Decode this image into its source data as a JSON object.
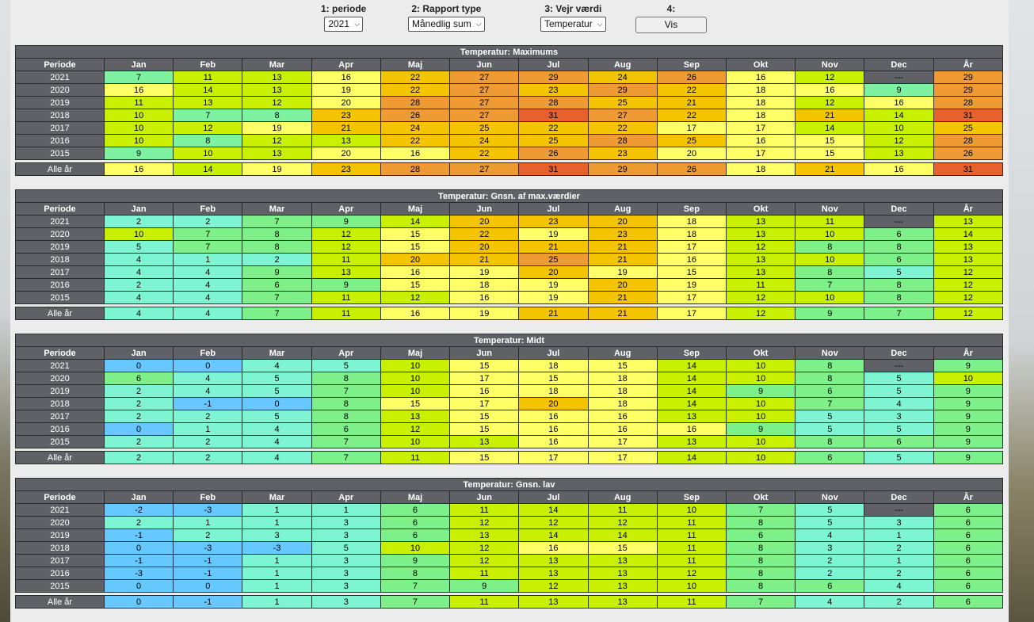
{
  "controls": {
    "periode_label": "1: periode",
    "periode_value": "2021",
    "rapport_label": "2: Rapport type",
    "rapport_value": "Månedlig sum",
    "vejr_label": "3: Vejr værdi",
    "vejr_value": "Temperatur",
    "step4_label": "4:",
    "vis_label": "Vis"
  },
  "months": [
    "Jan",
    "Feb",
    "Mar",
    "Apr",
    "Maj",
    "Jun",
    "Jul",
    "Aug",
    "Sep",
    "Okt",
    "Nov",
    "Dec",
    "År"
  ],
  "periode_header": "Periode",
  "colors": {
    "header": "#5f6166",
    "empty": "#5f6166",
    "scale": {
      "-3": "#66c8ff",
      "-1": "#66ccff",
      "0": "#6ecbf5",
      "1": "#78f5d2",
      "5": "#7df2c0",
      "7": "#7ef08a",
      "9": "#80f090",
      "10": "#c8f000",
      "15": "#ffff66",
      "20": "#f5c400",
      "26": "#ee9b34",
      "31": "#e8602c"
    }
  },
  "tables": [
    {
      "title": "Temperatur: Maximums",
      "rows": [
        {
          "label": "2021",
          "values": [
            "7",
            "11",
            "13",
            "16",
            "22",
            "27",
            "29",
            "24",
            "26",
            "16",
            "12",
            "---",
            "29"
          ]
        },
        {
          "label": "2020",
          "values": [
            "16",
            "14",
            "13",
            "19",
            "22",
            "27",
            "23",
            "29",
            "22",
            "18",
            "16",
            "9",
            "29"
          ]
        },
        {
          "label": "2019",
          "values": [
            "11",
            "13",
            "12",
            "20",
            "28",
            "27",
            "28",
            "25",
            "21",
            "18",
            "12",
            "16",
            "28"
          ]
        },
        {
          "label": "2018",
          "values": [
            "10",
            "7",
            "8",
            "23",
            "26",
            "27",
            "31",
            "27",
            "22",
            "18",
            "21",
            "14",
            "31"
          ]
        },
        {
          "label": "2017",
          "values": [
            "10",
            "12",
            "19",
            "21",
            "24",
            "25",
            "22",
            "22",
            "17",
            "17",
            "14",
            "10",
            "25"
          ]
        },
        {
          "label": "2016",
          "values": [
            "10",
            "8",
            "12",
            "13",
            "22",
            "24",
            "25",
            "28",
            "25",
            "16",
            "15",
            "12",
            "28"
          ]
        },
        {
          "label": "2015",
          "values": [
            "9",
            "10",
            "13",
            "20",
            "16",
            "22",
            "26",
            "23",
            "20",
            "17",
            "15",
            "13",
            "26"
          ]
        }
      ],
      "all": {
        "label": "Alle år",
        "values": [
          "16",
          "14",
          "19",
          "23",
          "28",
          "27",
          "31",
          "29",
          "26",
          "18",
          "21",
          "16",
          "31"
        ]
      }
    },
    {
      "title": "Temperatur: Gnsn. af max.værdier",
      "rows": [
        {
          "label": "2021",
          "values": [
            "2",
            "2",
            "7",
            "9",
            "14",
            "20",
            "23",
            "20",
            "18",
            "13",
            "11",
            "---",
            "13"
          ]
        },
        {
          "label": "2020",
          "values": [
            "10",
            "7",
            "8",
            "12",
            "15",
            "22",
            "19",
            "23",
            "18",
            "13",
            "10",
            "6",
            "14"
          ]
        },
        {
          "label": "2019",
          "values": [
            "5",
            "7",
            "8",
            "12",
            "15",
            "20",
            "21",
            "21",
            "17",
            "12",
            "8",
            "8",
            "13"
          ]
        },
        {
          "label": "2018",
          "values": [
            "4",
            "1",
            "2",
            "11",
            "20",
            "21",
            "25",
            "21",
            "16",
            "13",
            "10",
            "6",
            "13"
          ]
        },
        {
          "label": "2017",
          "values": [
            "4",
            "4",
            "9",
            "13",
            "16",
            "19",
            "20",
            "19",
            "15",
            "13",
            "8",
            "5",
            "12"
          ]
        },
        {
          "label": "2016",
          "values": [
            "2",
            "4",
            "6",
            "9",
            "15",
            "18",
            "19",
            "20",
            "19",
            "11",
            "7",
            "8",
            "12"
          ]
        },
        {
          "label": "2015",
          "values": [
            "4",
            "4",
            "7",
            "11",
            "12",
            "16",
            "19",
            "21",
            "17",
            "12",
            "10",
            "8",
            "12"
          ]
        }
      ],
      "all": {
        "label": "Alle år",
        "values": [
          "4",
          "4",
          "7",
          "11",
          "16",
          "19",
          "21",
          "21",
          "17",
          "12",
          "9",
          "7",
          "12"
        ]
      }
    },
    {
      "title": "Temperatur: Midt",
      "rows": [
        {
          "label": "2021",
          "values": [
            "0",
            "0",
            "4",
            "5",
            "10",
            "15",
            "18",
            "15",
            "14",
            "10",
            "8",
            "---",
            "9"
          ]
        },
        {
          "label": "2020",
          "values": [
            "6",
            "4",
            "5",
            "8",
            "10",
            "17",
            "15",
            "18",
            "14",
            "10",
            "8",
            "5",
            "10"
          ]
        },
        {
          "label": "2019",
          "values": [
            "2",
            "4",
            "5",
            "7",
            "10",
            "16",
            "18",
            "18",
            "14",
            "9",
            "6",
            "5",
            "9"
          ]
        },
        {
          "label": "2018",
          "values": [
            "2",
            "-1",
            "0",
            "8",
            "15",
            "17",
            "20",
            "18",
            "14",
            "10",
            "7",
            "4",
            "9"
          ]
        },
        {
          "label": "2017",
          "values": [
            "2",
            "2",
            "5",
            "8",
            "13",
            "15",
            "16",
            "16",
            "13",
            "10",
            "5",
            "3",
            "9"
          ]
        },
        {
          "label": "2016",
          "values": [
            "0",
            "1",
            "4",
            "6",
            "12",
            "15",
            "16",
            "16",
            "16",
            "9",
            "5",
            "5",
            "9"
          ]
        },
        {
          "label": "2015",
          "values": [
            "2",
            "2",
            "4",
            "7",
            "10",
            "13",
            "16",
            "17",
            "13",
            "10",
            "8",
            "6",
            "9"
          ]
        }
      ],
      "all": {
        "label": "Alle år",
        "values": [
          "2",
          "2",
          "4",
          "7",
          "11",
          "15",
          "17",
          "17",
          "14",
          "10",
          "6",
          "5",
          "9"
        ]
      }
    },
    {
      "title": "Temperatur: Gnsn. lav",
      "rows": [
        {
          "label": "2021",
          "values": [
            "-2",
            "-3",
            "1",
            "1",
            "6",
            "11",
            "14",
            "11",
            "10",
            "7",
            "5",
            "---",
            "6"
          ]
        },
        {
          "label": "2020",
          "values": [
            "2",
            "1",
            "1",
            "3",
            "6",
            "12",
            "12",
            "12",
            "11",
            "8",
            "5",
            "3",
            "6"
          ]
        },
        {
          "label": "2019",
          "values": [
            "-1",
            "2",
            "3",
            "3",
            "6",
            "13",
            "14",
            "14",
            "11",
            "6",
            "4",
            "1",
            "6"
          ]
        },
        {
          "label": "2018",
          "values": [
            "0",
            "-3",
            "-3",
            "5",
            "10",
            "12",
            "16",
            "15",
            "11",
            "8",
            "3",
            "2",
            "6"
          ]
        },
        {
          "label": "2017",
          "values": [
            "-1",
            "-1",
            "1",
            "3",
            "9",
            "12",
            "13",
            "13",
            "11",
            "8",
            "2",
            "1",
            "6"
          ]
        },
        {
          "label": "2016",
          "values": [
            "-3",
            "-1",
            "1",
            "3",
            "8",
            "11",
            "13",
            "13",
            "12",
            "8",
            "2",
            "2",
            "6"
          ]
        },
        {
          "label": "2015",
          "values": [
            "0",
            "0",
            "1",
            "3",
            "7",
            "9",
            "12",
            "13",
            "10",
            "8",
            "6",
            "4",
            "6"
          ]
        }
      ],
      "all": {
        "label": "Alle år",
        "values": [
          "0",
          "-1",
          "1",
          "3",
          "7",
          "11",
          "13",
          "13",
          "11",
          "7",
          "4",
          "2",
          "6"
        ]
      }
    }
  ]
}
